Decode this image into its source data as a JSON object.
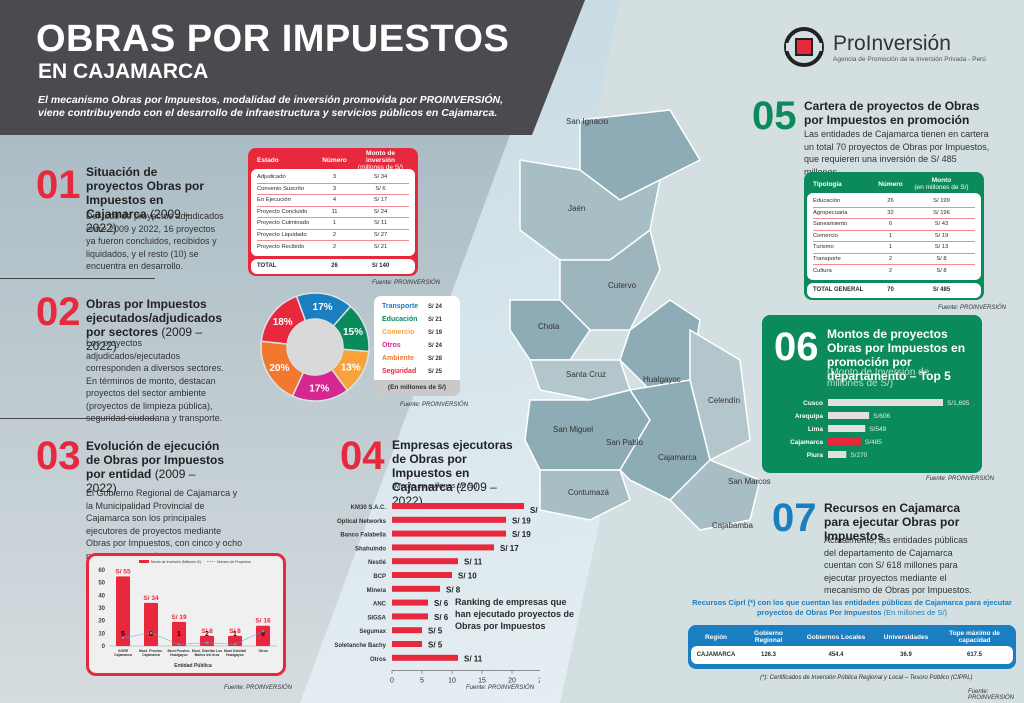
{
  "header": {
    "title": "OBRAS POR IMPUESTOS",
    "subtitle": "EN CAJAMARCA",
    "intro": "El mecanismo Obras por Impuestos, modalidad de inversión promovida por PROINVERSIÓN, viene contribuyendo con el desarrollo de infraestructura y servicios públicos en Cajamarca."
  },
  "logo": {
    "name": "ProInversión",
    "tagline": "Agencia de Promoción de la Inversión Privada - Perú"
  },
  "colors": {
    "red": "#e8283c",
    "green": "#0b8a5c",
    "blue": "#1a7ec1",
    "dark": "#4a4a4f"
  },
  "map_labels": [
    "San Ignacio",
    "Jaén",
    "Cutervo",
    "Chota",
    "Santa Cruz",
    "Hualgayoc",
    "Celendín",
    "San Miguel",
    "San Pablo",
    "Cajamarca",
    "Contumazá",
    "San Marcos",
    "Cajabamba"
  ],
  "s01": {
    "num": "01",
    "title": "Situación de proyectos Obras por Impuestos en Cajamarca",
    "years": "(2009 – 2022)",
    "body": "Del total de proyectos adjudicados entre 2009 y 2022, 16 proyectos ya fueron concluidos, recibidos y liquidados, y el resto (10) se encuentra en desarrollo.",
    "table": {
      "headers": [
        "Estado",
        "Número",
        "Monto de inversión",
        "(millones de S/)"
      ],
      "rows": [
        [
          "Adjudicado",
          "3",
          "S/ 34"
        ],
        [
          "Convenio Suscrito",
          "3",
          "S/ 6"
        ],
        [
          "En Ejecución",
          "4",
          "S/ 17"
        ],
        [
          "Proyecto Concluido",
          "11",
          "S/ 24"
        ],
        [
          "Proyecto Culminado",
          "1",
          "S/ 11"
        ],
        [
          "Proyecto Liquidado",
          "2",
          "S/ 27"
        ],
        [
          "Proyecto Recibido",
          "2",
          "S/ 21"
        ]
      ],
      "total": [
        "TOTAL",
        "26",
        "S/ 140"
      ]
    },
    "source": "Fuente: PROINVERSIÓN"
  },
  "s02": {
    "num": "02",
    "title": "Obras por Impuestos ejecutados/adjudicados por sectores",
    "years": "(2009 – 2022)",
    "body": "Los proyectos adjudicados/ejecutados corresponden a diversos sectores. En términos de monto, destacan proyectos del sector ambiente (proyectos de limpieza pública), seguridad ciudadana y transporte.",
    "legend_note": "(En millones de S/)",
    "source": "Fuente: PROINVERSIÓN"
  },
  "s03": {
    "num": "03",
    "title": "Evolución de ejecución de Obras por Impuestos por entidad",
    "years": "(2009 – 2022)",
    "body": "El Gobierno Regional de Cajamarca y la Municipalidad Provincial de Cajamarca son los principales ejecutores de proyectos mediante Obras por Impuestos, con cinco y ocho proyectos, en cada caso.",
    "source": "Fuente: PROINVERSIÓN"
  },
  "s04": {
    "num": "04",
    "title": "Empresas ejecutoras de Obras por Impuestos en Cajamarca",
    "years": "(2009 – 2022)",
    "note": "(Monto en millones de S/)",
    "ranking": "Ranking de empresas que han ejecutado proyectos de Obras por Impuestos",
    "source": "Fuente: PROINVERSIÓN"
  },
  "s05": {
    "num": "05",
    "title": "Cartera de proyectos de Obras por Impuestos en promoción",
    "body": "Las entidades de Cajamarca tienen en cartera un total 70 proyectos de Obras por Impuestos, que requieren una inversión de S/ 485 millones.",
    "table": {
      "headers": [
        "Tipología",
        "Número",
        "Monto",
        "(en millones de S/)"
      ],
      "rows": [
        [
          "Educación",
          "26",
          "S/ 199"
        ],
        [
          "Agropecuaria",
          "32",
          "S/ 196"
        ],
        [
          "Saneamiento",
          "6",
          "S/ 43"
        ],
        [
          "Comercio",
          "1",
          "S/ 19"
        ],
        [
          "Turismo",
          "1",
          "S/ 13"
        ],
        [
          "Transporte",
          "2",
          "S/ 8"
        ],
        [
          "Cultura",
          "2",
          "S/ 8"
        ]
      ],
      "total": [
        "TOTAL GENERAL",
        "70",
        "S/ 485"
      ]
    },
    "source": "Fuente: PROINVERSIÓN"
  },
  "s06": {
    "num": "06",
    "title": "Montos de proyectos Obras por Impuestos en promoción por departamento – Top 5",
    "subtitle": "(Monto de Inversión de millones de S/)",
    "source": "Fuente: PROINVERSIÓN"
  },
  "s07": {
    "num": "07",
    "title": "Recursos en Cajamarca para ejecutar Obras por Impuestos",
    "body": "Actualmente, las entidades públicas del departamento de Cajamarca cuentan con S/ 618 millones para ejecutar proyectos mediante el mecanismo de Obras por Impuestos.",
    "table_title": "Recursos Ciprl (*) con los que cuentan las entidades públicas de Cajamarca para ejecutar proyectos de Obras Por Impuestos",
    "table_unit": "(En millones de S/)",
    "table": {
      "headers": [
        "Región",
        "Gobierno Regional",
        "Gobiernos Locales",
        "Universidades",
        "Tope máximo de capacidad"
      ],
      "row": [
        "CAJAMARCA",
        "126.3",
        "454.4",
        "36.9",
        "617.5"
      ]
    },
    "footnote": "(*): Certificados de Inversión Pública Regional y Local – Tesoro Público (CIPRL)",
    "source": "Fuente: PROINVERSIÓN"
  },
  "chart_data": [
    {
      "id": "sectores",
      "type": "pie",
      "title": "Obras por Impuestos ejecutados/adjudicados por sectores (2009 – 2022)",
      "categories": [
        "Transporte",
        "Educación",
        "Comercio",
        "Otros",
        "Ambiente",
        "Seguridad"
      ],
      "values": [
        24,
        21,
        19,
        24,
        28,
        25
      ],
      "percent_labels": [
        "17%",
        "15%",
        "13%",
        "17%",
        "20%",
        "18%"
      ],
      "value_labels": [
        "S/ 24",
        "S/ 21",
        "S/ 19",
        "S/ 24",
        "S/ 28",
        "S/ 25"
      ],
      "colors": [
        "#1a7ec1",
        "#0b8a5c",
        "#f7a23b",
        "#d6268f",
        "#f2782e",
        "#e8283c"
      ],
      "unit": "millones de S/"
    },
    {
      "id": "entidades",
      "type": "bar",
      "title": "Evolución de ejecución de Obras por Impuestos por entidad",
      "categories": [
        "GORE Cajamarca",
        "Muni. Provinc. Cajamarca",
        "Muni Provinc. Hualgayoc",
        "Muni. Distrital Los Baños del Inca",
        "Muni Distrital Hualgayoc",
        "Otros"
      ],
      "series": [
        {
          "name": "Monto de Inversión (Millones S/)",
          "type": "bar",
          "values": [
            55,
            34,
            19,
            8,
            8,
            16
          ],
          "labels": [
            "S/ 55",
            "S/ 34",
            "S/ 19",
            "S/ 8",
            "S/ 8",
            "S/ 16"
          ]
        },
        {
          "name": "Número de Proyectos",
          "type": "line",
          "values": [
            5,
            8,
            1,
            2,
            1,
            9
          ]
        }
      ],
      "xlabel": "Entidad Pública",
      "ylim": [
        0,
        60
      ],
      "yticks": [
        0,
        10,
        20,
        30,
        40,
        50,
        60
      ]
    },
    {
      "id": "empresas",
      "type": "bar",
      "orientation": "horizontal",
      "title": "Empresas ejecutoras de Obras por Impuestos en Cajamarca",
      "categories": [
        "KM30 S.A.C.",
        "Optical Networks",
        "Banco Falabella",
        "Shahuindo",
        "Nestlé",
        "BCP",
        "Minera",
        "ANC",
        "SIGSA",
        "Segumax",
        "Soletanche Bachy",
        "Otros"
      ],
      "values": [
        22,
        19,
        19,
        17,
        11,
        10,
        8,
        6,
        6,
        5,
        5,
        11
      ],
      "labels": [
        "S/ 22",
        "S/ 19",
        "S/ 19",
        "S/ 17",
        "S/ 11",
        "S/ 10",
        "S/ 8",
        "S/ 6",
        "S/ 6",
        "S/ 5",
        "S/ 5",
        "S/ 11"
      ],
      "xlim": [
        0,
        25
      ],
      "xticks": [
        0,
        5,
        10,
        15,
        20,
        25
      ]
    },
    {
      "id": "top5",
      "type": "bar",
      "orientation": "horizontal",
      "title": "Montos de proyectos Obras por Impuestos en promoción por departamento – Top 5",
      "categories": [
        "Cusco",
        "Arequipa",
        "Lima",
        "Cajamarca",
        "Piura"
      ],
      "values": [
        1695,
        606,
        549,
        485,
        270
      ],
      "labels": [
        "S/1,695",
        "S/606",
        "S/549",
        "S/485",
        "S/270"
      ],
      "highlight": "Cajamarca"
    }
  ]
}
